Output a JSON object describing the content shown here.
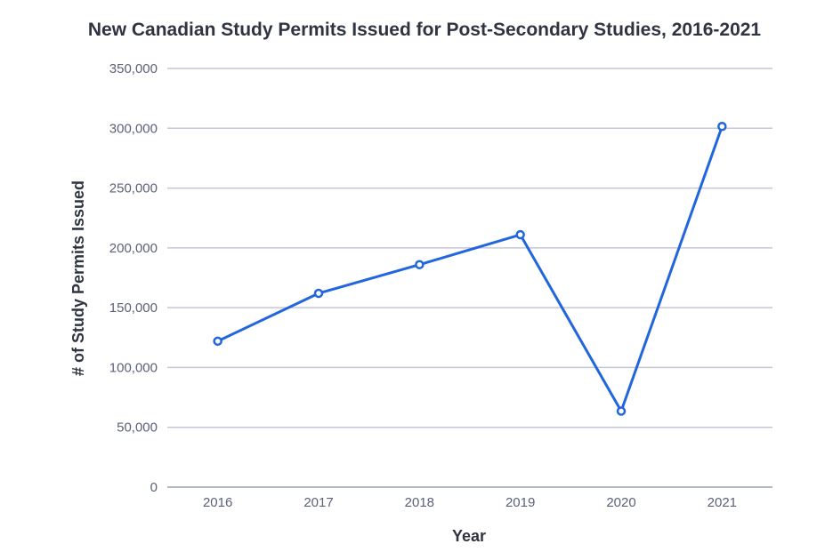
{
  "chart_data": {
    "type": "line",
    "title": "New Canadian Study Permits Issued for Post-Secondary Studies, 2016-2021",
    "xlabel": "Year",
    "ylabel": "# of Study Permits Issued",
    "categories": [
      "2016",
      "2017",
      "2018",
      "2019",
      "2020",
      "2021"
    ],
    "series": [
      {
        "values": [
          122000,
          162000,
          186000,
          211000,
          63500,
          301500
        ]
      }
    ],
    "ylim": [
      0,
      350000
    ],
    "yticks": [
      0,
      50000,
      100000,
      150000,
      200000,
      250000,
      300000,
      350000
    ],
    "ytick_labels": [
      "0",
      "50,000",
      "100,000",
      "150,000",
      "200,000",
      "250,000",
      "300,000",
      "350,000"
    ],
    "grid": true,
    "legend": "none",
    "line_color": "#2266dd"
  }
}
